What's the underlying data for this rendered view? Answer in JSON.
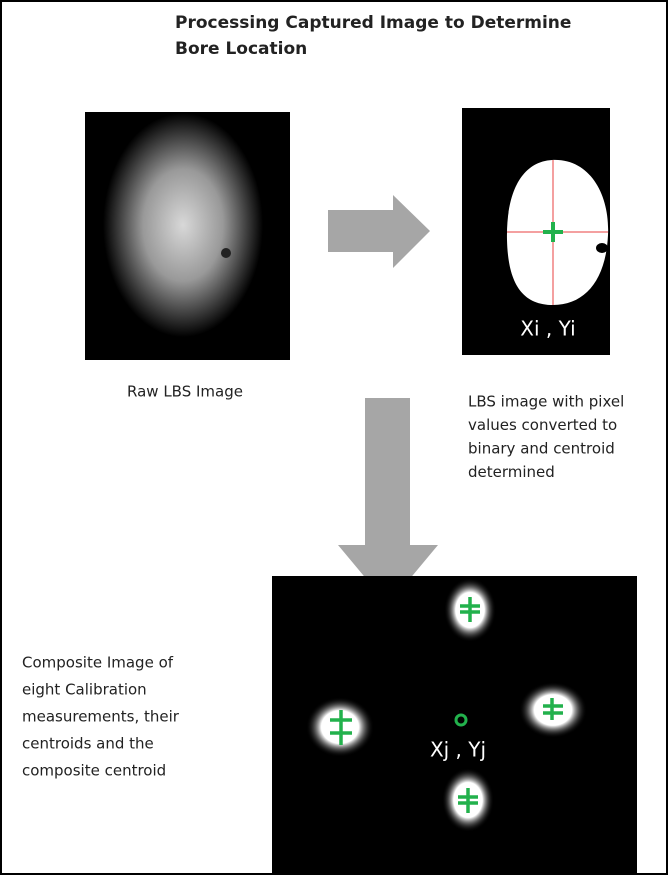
{
  "title": {
    "lines": [
      "Processing Captured Image to Determine",
      "Bore Location"
    ]
  },
  "raw_image": {
    "caption": "Raw LBS Image"
  },
  "binary_image": {
    "coordinate_label": "Xi , Yi",
    "caption_lines": [
      "LBS image with pixel",
      "values converted to",
      "binary and centroid",
      "determined"
    ]
  },
  "composite_image": {
    "coordinate_label": "Xj , Yj",
    "caption_lines": [
      "Composite Image of",
      "eight Calibration",
      "measurements, their",
      "centroids and the",
      "composite centroid"
    ]
  }
}
